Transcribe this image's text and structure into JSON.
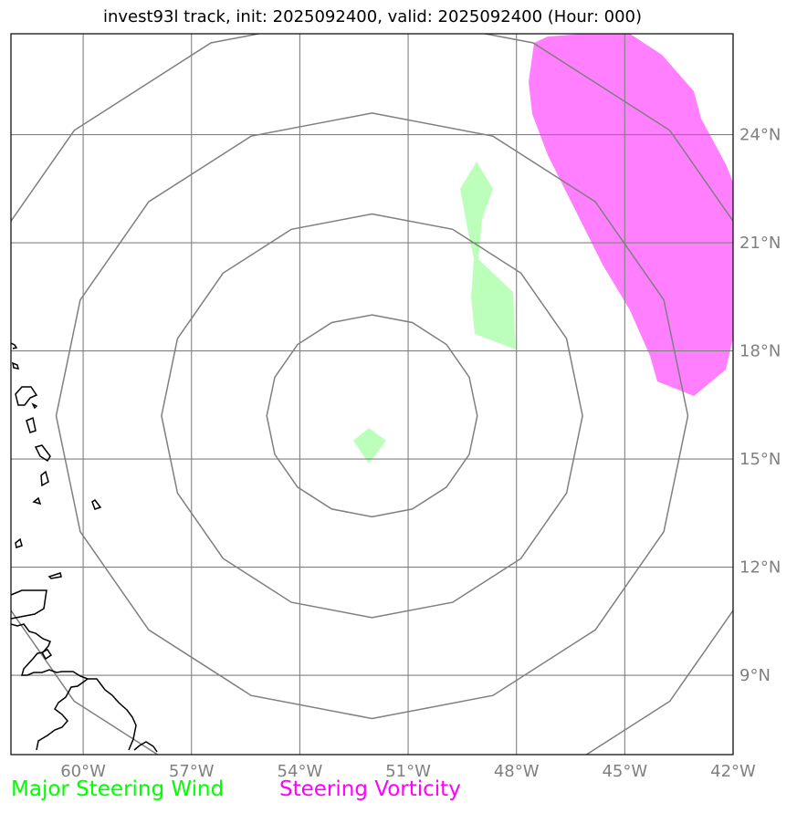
{
  "title": "invest93l track, init: 2025092400, valid: 2025092400 (Hour: 000)",
  "map": {
    "lon_ticks": [
      {
        "lon": -60,
        "label": "60°W"
      },
      {
        "lon": -57,
        "label": "57°W"
      },
      {
        "lon": -54,
        "label": "54°W"
      },
      {
        "lon": -51,
        "label": "51°W"
      },
      {
        "lon": -48,
        "label": "48°W"
      },
      {
        "lon": -45,
        "label": "45°W"
      },
      {
        "lon": -42,
        "label": "42°W"
      }
    ],
    "lat_ticks": [
      {
        "lat": 24,
        "label": "24°N"
      },
      {
        "lat": 21,
        "label": "21°N"
      },
      {
        "lat": 18,
        "label": "18°N"
      },
      {
        "lat": 15,
        "label": "15°N"
      },
      {
        "lat": 12,
        "label": "12°N"
      },
      {
        "lat": 9,
        "label": "9°N"
      }
    ],
    "extent": {
      "lon_min": -62,
      "lon_max": -42,
      "lat_min": 6.8,
      "lat_max": 26.8
    },
    "range_rings": {
      "center": {
        "lon": -52,
        "lat": 16.2
      },
      "radius_deg": [
        2.8,
        5.6,
        8.4,
        11.2
      ]
    },
    "colors": {
      "grid": "#808080",
      "ring": "#7f7f7f",
      "coast": "#000000",
      "wind": "#bbffbb",
      "vorticity": "#ff7fff"
    }
  },
  "legend": {
    "wind_label": "Major Steering Wind",
    "wind_color": "#00ff00",
    "vorticity_label": "Steering Vorticity",
    "vorticity_color": "#ff00ff"
  }
}
